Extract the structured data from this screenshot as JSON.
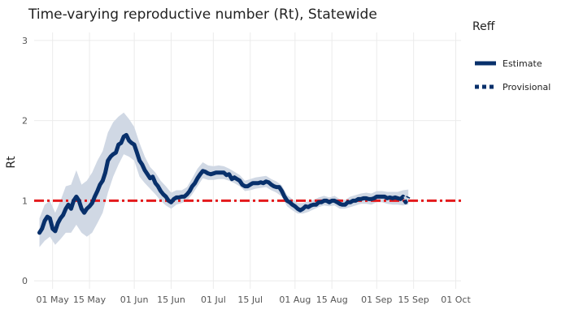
{
  "chart_data": {
    "type": "line",
    "title": "Time-varying reproductive number (Rt), Statewide",
    "xlabel": "",
    "ylabel": "Rt",
    "x_range": [
      "2020-04-24",
      "2020-10-03"
    ],
    "ylim": [
      -0.1,
      3.1
    ],
    "y_ticks": [
      0,
      1,
      2,
      3
    ],
    "x_ticks": [
      {
        "date": "2020-05-01",
        "label": "01 May"
      },
      {
        "date": "2020-05-15",
        "label": "15 May"
      },
      {
        "date": "2020-06-01",
        "label": "01 Jun"
      },
      {
        "date": "2020-06-15",
        "label": "15 Jun"
      },
      {
        "date": "2020-07-01",
        "label": "01 Jul"
      },
      {
        "date": "2020-07-15",
        "label": "15 Jul"
      },
      {
        "date": "2020-08-01",
        "label": "01 Aug"
      },
      {
        "date": "2020-08-15",
        "label": "15 Aug"
      },
      {
        "date": "2020-09-01",
        "label": "01 Sep"
      },
      {
        "date": "2020-09-15",
        "label": "15 Sep"
      },
      {
        "date": "2020-10-01",
        "label": "01 Oct"
      }
    ],
    "grid": true,
    "legend": {
      "title": "Reff",
      "placement": "right"
    },
    "reference_line": {
      "y": 1,
      "color": "#e41a1c",
      "style": "dash-dot"
    },
    "band_color": "#d0d8e4",
    "series": [
      {
        "name": "Estimate",
        "color": "#08306b",
        "style": "solid",
        "points": [
          [
            "2020-04-26",
            0.6
          ],
          [
            "2020-04-27",
            0.65
          ],
          [
            "2020-04-28",
            0.75
          ],
          [
            "2020-04-29",
            0.8
          ],
          [
            "2020-04-30",
            0.78
          ],
          [
            "2020-05-01",
            0.65
          ],
          [
            "2020-05-02",
            0.62
          ],
          [
            "2020-05-03",
            0.72
          ],
          [
            "2020-05-04",
            0.78
          ],
          [
            "2020-05-05",
            0.82
          ],
          [
            "2020-05-06",
            0.9
          ],
          [
            "2020-05-07",
            0.95
          ],
          [
            "2020-05-08",
            0.9
          ],
          [
            "2020-05-09",
            1.0
          ],
          [
            "2020-05-10",
            1.05
          ],
          [
            "2020-05-11",
            1.0
          ],
          [
            "2020-05-12",
            0.9
          ],
          [
            "2020-05-13",
            0.85
          ],
          [
            "2020-05-14",
            0.9
          ],
          [
            "2020-05-15",
            0.93
          ],
          [
            "2020-05-16",
            0.97
          ],
          [
            "2020-05-17",
            1.05
          ],
          [
            "2020-05-18",
            1.12
          ],
          [
            "2020-05-19",
            1.2
          ],
          [
            "2020-05-20",
            1.25
          ],
          [
            "2020-05-21",
            1.35
          ],
          [
            "2020-05-22",
            1.5
          ],
          [
            "2020-05-23",
            1.55
          ],
          [
            "2020-05-24",
            1.58
          ],
          [
            "2020-05-25",
            1.6
          ],
          [
            "2020-05-26",
            1.7
          ],
          [
            "2020-05-27",
            1.72
          ],
          [
            "2020-05-28",
            1.8
          ],
          [
            "2020-05-29",
            1.82
          ],
          [
            "2020-05-30",
            1.75
          ],
          [
            "2020-05-31",
            1.72
          ],
          [
            "2020-06-01",
            1.7
          ],
          [
            "2020-06-02",
            1.6
          ],
          [
            "2020-06-03",
            1.5
          ],
          [
            "2020-06-04",
            1.45
          ],
          [
            "2020-06-05",
            1.38
          ],
          [
            "2020-06-06",
            1.33
          ],
          [
            "2020-06-07",
            1.28
          ],
          [
            "2020-06-08",
            1.3
          ],
          [
            "2020-06-09",
            1.22
          ],
          [
            "2020-06-10",
            1.18
          ],
          [
            "2020-06-11",
            1.12
          ],
          [
            "2020-06-12",
            1.08
          ],
          [
            "2020-06-13",
            1.05
          ],
          [
            "2020-06-14",
            1.0
          ],
          [
            "2020-06-15",
            0.98
          ],
          [
            "2020-06-16",
            1.02
          ],
          [
            "2020-06-17",
            1.04
          ],
          [
            "2020-06-18",
            1.04
          ],
          [
            "2020-06-19",
            1.05
          ],
          [
            "2020-06-20",
            1.05
          ],
          [
            "2020-06-21",
            1.08
          ],
          [
            "2020-06-22",
            1.12
          ],
          [
            "2020-06-23",
            1.18
          ],
          [
            "2020-06-24",
            1.22
          ],
          [
            "2020-06-25",
            1.28
          ],
          [
            "2020-06-26",
            1.33
          ],
          [
            "2020-06-27",
            1.37
          ],
          [
            "2020-06-28",
            1.36
          ],
          [
            "2020-06-29",
            1.34
          ],
          [
            "2020-06-30",
            1.33
          ],
          [
            "2020-07-01",
            1.34
          ],
          [
            "2020-07-02",
            1.35
          ],
          [
            "2020-07-03",
            1.35
          ],
          [
            "2020-07-04",
            1.35
          ],
          [
            "2020-07-05",
            1.35
          ],
          [
            "2020-07-06",
            1.32
          ],
          [
            "2020-07-07",
            1.33
          ],
          [
            "2020-07-08",
            1.27
          ],
          [
            "2020-07-09",
            1.29
          ],
          [
            "2020-07-10",
            1.27
          ],
          [
            "2020-07-11",
            1.25
          ],
          [
            "2020-07-12",
            1.2
          ],
          [
            "2020-07-13",
            1.18
          ],
          [
            "2020-07-14",
            1.18
          ],
          [
            "2020-07-15",
            1.2
          ],
          [
            "2020-07-16",
            1.22
          ],
          [
            "2020-07-17",
            1.22
          ],
          [
            "2020-07-18",
            1.22
          ],
          [
            "2020-07-19",
            1.23
          ],
          [
            "2020-07-20",
            1.22
          ],
          [
            "2020-07-21",
            1.24
          ],
          [
            "2020-07-22",
            1.23
          ],
          [
            "2020-07-23",
            1.2
          ],
          [
            "2020-07-24",
            1.18
          ],
          [
            "2020-07-25",
            1.17
          ],
          [
            "2020-07-26",
            1.17
          ],
          [
            "2020-07-27",
            1.12
          ],
          [
            "2020-07-28",
            1.05
          ],
          [
            "2020-07-29",
            1.0
          ],
          [
            "2020-07-30",
            0.98
          ],
          [
            "2020-07-31",
            0.95
          ],
          [
            "2020-08-01",
            0.93
          ],
          [
            "2020-08-02",
            0.9
          ],
          [
            "2020-08-03",
            0.88
          ],
          [
            "2020-08-04",
            0.9
          ],
          [
            "2020-08-05",
            0.93
          ],
          [
            "2020-08-06",
            0.92
          ],
          [
            "2020-08-07",
            0.94
          ],
          [
            "2020-08-08",
            0.95
          ],
          [
            "2020-08-09",
            0.95
          ],
          [
            "2020-08-10",
            0.98
          ],
          [
            "2020-08-11",
            0.98
          ],
          [
            "2020-08-12",
            1.0
          ],
          [
            "2020-08-13",
            1.0
          ],
          [
            "2020-08-14",
            0.98
          ],
          [
            "2020-08-15",
            1.0
          ],
          [
            "2020-08-16",
            1.0
          ],
          [
            "2020-08-17",
            0.98
          ],
          [
            "2020-08-18",
            0.96
          ],
          [
            "2020-08-19",
            0.95
          ],
          [
            "2020-08-20",
            0.95
          ],
          [
            "2020-08-21",
            0.98
          ],
          [
            "2020-08-22",
            0.98
          ],
          [
            "2020-08-23",
            1.0
          ],
          [
            "2020-08-24",
            1.0
          ],
          [
            "2020-08-25",
            1.02
          ],
          [
            "2020-08-26",
            1.02
          ],
          [
            "2020-08-27",
            1.03
          ],
          [
            "2020-08-28",
            1.03
          ],
          [
            "2020-08-29",
            1.02
          ],
          [
            "2020-08-30",
            1.02
          ],
          [
            "2020-08-31",
            1.03
          ],
          [
            "2020-09-01",
            1.05
          ],
          [
            "2020-09-02",
            1.05
          ],
          [
            "2020-09-03",
            1.05
          ],
          [
            "2020-09-04",
            1.05
          ],
          [
            "2020-09-05",
            1.03
          ],
          [
            "2020-09-06",
            1.04
          ],
          [
            "2020-09-07",
            1.03
          ],
          [
            "2020-09-08",
            1.04
          ],
          [
            "2020-09-09",
            1.03
          ],
          [
            "2020-09-10",
            1.02
          ]
        ]
      },
      {
        "name": "Provisional",
        "color": "#08306b",
        "style": "dotted",
        "points": [
          [
            "2020-09-10",
            1.02
          ],
          [
            "2020-09-11",
            1.05
          ],
          [
            "2020-09-12",
            0.98
          ],
          [
            "2020-09-13",
            1.05
          ]
        ]
      }
    ],
    "ci_band": [
      [
        "2020-04-26",
        0.42,
        0.78
      ],
      [
        "2020-04-28",
        0.5,
        0.95
      ],
      [
        "2020-04-30",
        0.55,
        1.0
      ],
      [
        "2020-05-02",
        0.45,
        0.85
      ],
      [
        "2020-05-04",
        0.52,
        1.0
      ],
      [
        "2020-05-06",
        0.6,
        1.18
      ],
      [
        "2020-05-08",
        0.6,
        1.2
      ],
      [
        "2020-05-10",
        0.7,
        1.38
      ],
      [
        "2020-05-12",
        0.6,
        1.2
      ],
      [
        "2020-05-14",
        0.55,
        1.25
      ],
      [
        "2020-05-16",
        0.6,
        1.35
      ],
      [
        "2020-05-18",
        0.72,
        1.5
      ],
      [
        "2020-05-20",
        0.85,
        1.62
      ],
      [
        "2020-05-22",
        1.1,
        1.85
      ],
      [
        "2020-05-24",
        1.3,
        1.98
      ],
      [
        "2020-05-26",
        1.45,
        2.05
      ],
      [
        "2020-05-28",
        1.58,
        2.1
      ],
      [
        "2020-05-30",
        1.55,
        2.02
      ],
      [
        "2020-06-01",
        1.5,
        1.92
      ],
      [
        "2020-06-03",
        1.3,
        1.72
      ],
      [
        "2020-06-05",
        1.22,
        1.55
      ],
      [
        "2020-06-07",
        1.15,
        1.42
      ],
      [
        "2020-06-09",
        1.08,
        1.35
      ],
      [
        "2020-06-11",
        1.0,
        1.25
      ],
      [
        "2020-06-13",
        0.94,
        1.18
      ],
      [
        "2020-06-15",
        0.9,
        1.1
      ],
      [
        "2020-06-17",
        0.95,
        1.13
      ],
      [
        "2020-06-19",
        0.97,
        1.13
      ],
      [
        "2020-06-21",
        1.0,
        1.17
      ],
      [
        "2020-06-23",
        1.08,
        1.28
      ],
      [
        "2020-06-25",
        1.18,
        1.4
      ],
      [
        "2020-06-27",
        1.28,
        1.48
      ],
      [
        "2020-06-29",
        1.26,
        1.44
      ],
      [
        "2020-07-01",
        1.26,
        1.43
      ],
      [
        "2020-07-03",
        1.27,
        1.44
      ],
      [
        "2020-07-05",
        1.27,
        1.43
      ],
      [
        "2020-07-07",
        1.25,
        1.4
      ],
      [
        "2020-07-09",
        1.22,
        1.36
      ],
      [
        "2020-07-11",
        1.18,
        1.32
      ],
      [
        "2020-07-13",
        1.12,
        1.25
      ],
      [
        "2020-07-15",
        1.13,
        1.27
      ],
      [
        "2020-07-17",
        1.15,
        1.29
      ],
      [
        "2020-07-19",
        1.16,
        1.3
      ],
      [
        "2020-07-21",
        1.17,
        1.31
      ],
      [
        "2020-07-23",
        1.13,
        1.27
      ],
      [
        "2020-07-25",
        1.1,
        1.24
      ],
      [
        "2020-07-27",
        1.05,
        1.19
      ],
      [
        "2020-07-29",
        0.93,
        1.07
      ],
      [
        "2020-07-31",
        0.88,
        1.02
      ],
      [
        "2020-08-02",
        0.84,
        0.97
      ],
      [
        "2020-08-04",
        0.84,
        0.97
      ],
      [
        "2020-08-06",
        0.86,
        0.99
      ],
      [
        "2020-08-08",
        0.89,
        1.01
      ],
      [
        "2020-08-10",
        0.92,
        1.04
      ],
      [
        "2020-08-12",
        0.94,
        1.06
      ],
      [
        "2020-08-14",
        0.93,
        1.04
      ],
      [
        "2020-08-16",
        0.94,
        1.06
      ],
      [
        "2020-08-18",
        0.9,
        1.02
      ],
      [
        "2020-08-20",
        0.9,
        1.01
      ],
      [
        "2020-08-22",
        0.92,
        1.05
      ],
      [
        "2020-08-24",
        0.94,
        1.07
      ],
      [
        "2020-08-26",
        0.96,
        1.09
      ],
      [
        "2020-08-28",
        0.96,
        1.1
      ],
      [
        "2020-08-30",
        0.95,
        1.09
      ],
      [
        "2020-09-01",
        0.98,
        1.12
      ],
      [
        "2020-09-03",
        0.98,
        1.12
      ],
      [
        "2020-09-05",
        0.96,
        1.11
      ],
      [
        "2020-09-07",
        0.95,
        1.11
      ],
      [
        "2020-09-09",
        0.95,
        1.11
      ],
      [
        "2020-09-11",
        0.94,
        1.13
      ],
      [
        "2020-09-13",
        0.95,
        1.14
      ]
    ]
  }
}
